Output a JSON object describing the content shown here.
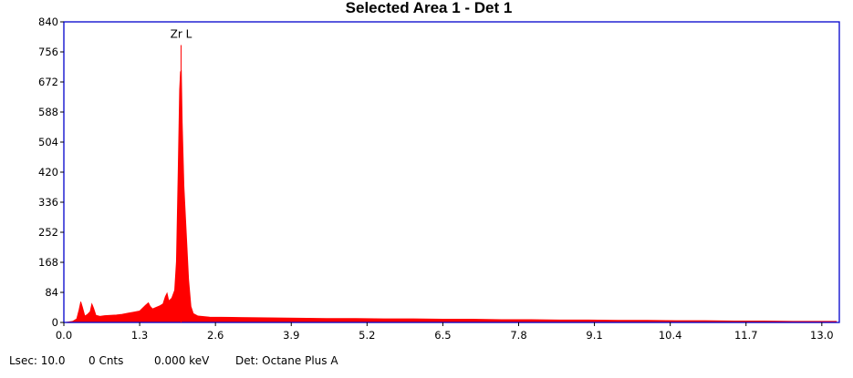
{
  "chart_data": {
    "type": "area",
    "title": "Selected Area 1 - Det 1",
    "xlabel": "",
    "ylabel": "",
    "xlim": [
      0.0,
      13.3
    ],
    "ylim": [
      0,
      840
    ],
    "x_ticks": [
      "0.0",
      "1.3",
      "2.6",
      "3.9",
      "5.2",
      "6.5",
      "7.8",
      "9.1",
      "10.4",
      "11.7",
      "13.0"
    ],
    "y_ticks": [
      "0",
      "84",
      "168",
      "252",
      "336",
      "420",
      "504",
      "588",
      "672",
      "756",
      "840"
    ],
    "grid": false,
    "colors": {
      "spectrum": "#ff0000",
      "frame": "#0000cc"
    },
    "series": [
      {
        "points": [
          [
            0.02,
            0
          ],
          [
            0.15,
            3
          ],
          [
            0.22,
            10
          ],
          [
            0.26,
            35
          ],
          [
            0.29,
            58
          ],
          [
            0.32,
            42
          ],
          [
            0.36,
            18
          ],
          [
            0.4,
            22
          ],
          [
            0.45,
            30
          ],
          [
            0.48,
            52
          ],
          [
            0.51,
            40
          ],
          [
            0.55,
            20
          ],
          [
            0.62,
            17
          ],
          [
            0.7,
            19
          ],
          [
            0.8,
            20
          ],
          [
            0.9,
            21
          ],
          [
            1.0,
            23
          ],
          [
            1.1,
            26
          ],
          [
            1.2,
            29
          ],
          [
            1.3,
            32
          ],
          [
            1.35,
            40
          ],
          [
            1.4,
            48
          ],
          [
            1.45,
            55
          ],
          [
            1.48,
            45
          ],
          [
            1.52,
            38
          ],
          [
            1.58,
            42
          ],
          [
            1.64,
            46
          ],
          [
            1.7,
            52
          ],
          [
            1.74,
            72
          ],
          [
            1.77,
            82
          ],
          [
            1.8,
            60
          ],
          [
            1.85,
            68
          ],
          [
            1.9,
            90
          ],
          [
            1.93,
            170
          ],
          [
            1.96,
            420
          ],
          [
            1.985,
            650
          ],
          [
            2.0,
            700
          ],
          [
            2.015,
            705
          ],
          [
            2.03,
            560
          ],
          [
            2.06,
            380
          ],
          [
            2.1,
            250
          ],
          [
            2.14,
            120
          ],
          [
            2.18,
            45
          ],
          [
            2.22,
            25
          ],
          [
            2.3,
            18
          ],
          [
            2.5,
            15
          ],
          [
            3.0,
            14
          ],
          [
            3.5,
            13
          ],
          [
            4.0,
            12
          ],
          [
            4.5,
            11
          ],
          [
            5.0,
            11
          ],
          [
            5.5,
            10
          ],
          [
            6.0,
            10
          ],
          [
            6.5,
            9
          ],
          [
            7.0,
            9
          ],
          [
            7.5,
            8
          ],
          [
            8.0,
            8
          ],
          [
            8.5,
            7
          ],
          [
            9.0,
            7
          ],
          [
            9.5,
            6
          ],
          [
            10.0,
            6
          ],
          [
            10.5,
            5
          ],
          [
            11.0,
            5
          ],
          [
            11.5,
            4
          ],
          [
            12.0,
            4
          ],
          [
            12.5,
            3
          ],
          [
            13.0,
            3
          ],
          [
            13.25,
            3
          ]
        ]
      }
    ],
    "peak_labels": [
      {
        "label": "Zr L",
        "x": 2.01,
        "y": 775
      }
    ]
  },
  "status": {
    "lsec": "Lsec: 10.0",
    "cnts": "0 Cnts",
    "kev": "0.000 keV",
    "det": "Det: Octane Plus A"
  }
}
